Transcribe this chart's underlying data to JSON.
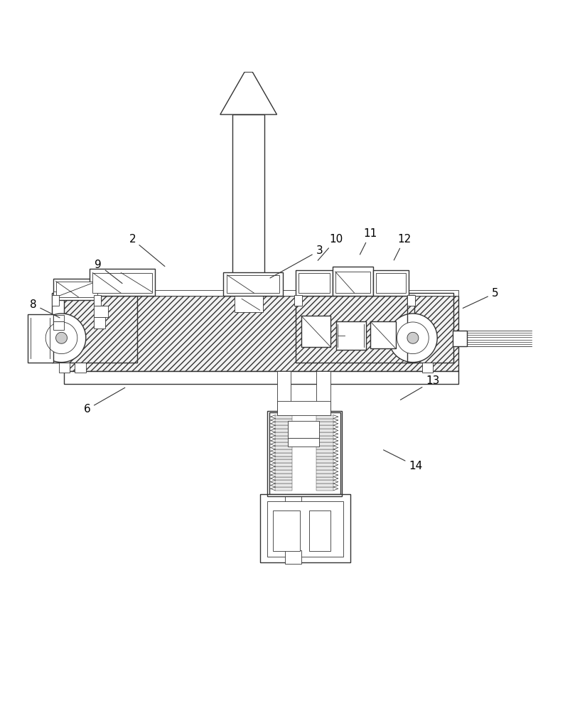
{
  "bg_color": "#ffffff",
  "line_color": "#333333",
  "label_color": "#000000",
  "lw": 1.0,
  "tlw": 0.6,
  "figsize": [
    8.03,
    10.0
  ],
  "dpi": 100,
  "labels": {
    "2": {
      "lpos": [
        2.3,
        7.05
      ],
      "epos": [
        2.9,
        6.55
      ]
    },
    "3": {
      "lpos": [
        5.6,
        6.85
      ],
      "epos": [
        4.7,
        6.35
      ]
    },
    "5": {
      "lpos": [
        8.7,
        6.1
      ],
      "epos": [
        8.1,
        5.82
      ]
    },
    "6": {
      "lpos": [
        1.5,
        4.05
      ],
      "epos": [
        2.2,
        4.45
      ]
    },
    "8": {
      "lpos": [
        0.55,
        5.9
      ],
      "epos": [
        1.05,
        5.65
      ]
    },
    "9": {
      "lpos": [
        1.7,
        6.6
      ],
      "epos": [
        2.15,
        6.25
      ]
    },
    "10": {
      "lpos": [
        5.9,
        7.05
      ],
      "epos": [
        5.55,
        6.65
      ]
    },
    "11": {
      "lpos": [
        6.5,
        7.15
      ],
      "epos": [
        6.3,
        6.75
      ]
    },
    "12": {
      "lpos": [
        7.1,
        7.05
      ],
      "epos": [
        6.9,
        6.65
      ]
    },
    "13": {
      "lpos": [
        7.6,
        4.55
      ],
      "epos": [
        7.0,
        4.2
      ]
    },
    "14": {
      "lpos": [
        7.3,
        3.05
      ],
      "epos": [
        6.7,
        3.35
      ]
    }
  }
}
